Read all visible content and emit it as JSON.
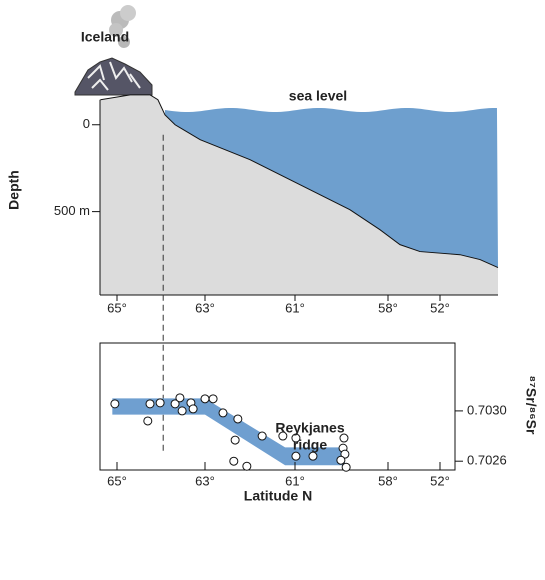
{
  "chart_data": [
    {
      "type": "area",
      "y_label": "Depth",
      "annotations": [
        "Iceland",
        "sea level"
      ],
      "x": [
        65.39,
        64.7,
        64.25,
        64.07,
        63.91,
        63.68,
        63.11,
        62.0,
        60.84,
        59.23,
        58.26,
        56.62,
        54.31,
        49.69,
        47.38,
        45.3
      ],
      "values": [
        -144,
        -172,
        -172,
        -144,
        -57,
        0,
        86,
        201,
        345,
        489,
        604,
        690,
        730,
        748,
        776,
        822
      ],
      "color": "#dcdcdc",
      "sea_color": "#6e9fce",
      "y_inverted": true,
      "reference_x": 63.95,
      "xlim": [
        65.4,
        45.3
      ],
      "ylim": [
        -200,
        980
      ],
      "xticks": [
        {
          "value": 65,
          "label": "65°"
        },
        {
          "value": 63,
          "label": "63°"
        },
        {
          "value": 61,
          "label": "61°"
        },
        {
          "value": 58,
          "label": "58°"
        },
        {
          "value": 52,
          "label": "52°"
        }
      ],
      "yticks": [
        0,
        {
          "value": 500,
          "label": "500 m"
        }
      ]
    },
    {
      "type": "scatter",
      "x_label": "Latitude N",
      "y_label": "⁸⁷Sr/⁸⁶Sr",
      "annotations": [
        "Reykjanes",
        "ridge"
      ],
      "x": [
        65.05,
        64.3,
        64.25,
        64.02,
        63.68,
        63.57,
        63.52,
        63.32,
        63.27,
        63.0,
        62.82,
        62.6,
        62.27,
        62.33,
        61.73,
        61.27,
        62.36,
        62.07,
        60.97,
        60.97,
        60.42,
        59.42,
        59.45,
        59.39,
        59.35,
        59.52
      ],
      "values": [
        0.703056,
        0.70292,
        0.703056,
        0.703064,
        0.703056,
        0.703104,
        0.703,
        0.703064,
        0.703016,
        0.703096,
        0.703096,
        0.702984,
        0.702936,
        0.702768,
        0.7028,
        0.7028,
        0.7026,
        0.70256,
        0.702784,
        0.70264,
        0.70264,
        0.702784,
        0.702704,
        0.702656,
        0.702552,
        0.702608
      ],
      "band": {
        "x": [
          65.11,
          63.0,
          61.22,
          59.39
        ],
        "upper": [
          0.7031,
          0.7031,
          0.70271,
          0.70271
        ],
        "lower": [
          0.70297,
          0.70297,
          0.702568,
          0.702568
        ],
        "color": "#6f9fd0"
      },
      "xlim": [
        65.4,
        50.3
      ],
      "ylim": [
        0.70253,
        0.70354
      ],
      "xticks": [
        {
          "value": 65,
          "label": "65°"
        },
        {
          "value": 63,
          "label": "63°"
        },
        {
          "value": 61,
          "label": "61°"
        },
        {
          "value": 58,
          "label": "58°"
        },
        {
          "value": 52,
          "label": "52°"
        }
      ],
      "yticks": [
        {
          "value": 0.7026,
          "label": "0.7026"
        },
        {
          "value": 0.703,
          "label": "0.7030"
        }
      ]
    }
  ]
}
